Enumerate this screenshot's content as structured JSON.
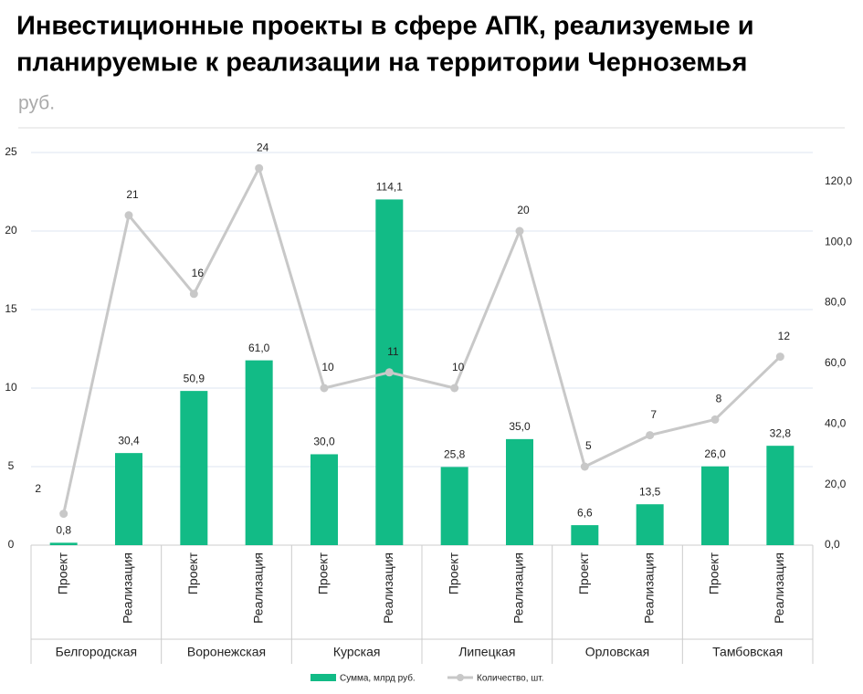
{
  "chart_data": {
    "type": "bar-line",
    "title": [
      "Инвестиционные проекты в сфере АПК, реализуемые и",
      "планируемые к реализации на территории  Черноземья"
    ],
    "subtitle": "руб.",
    "categories": [
      "Проект",
      "Реализация",
      "Проект",
      "Реализация",
      "Проект",
      "Реализация",
      "Проект",
      "Реализация",
      "Проект",
      "Реализация",
      "Проект",
      "Реализация"
    ],
    "groups": [
      "Белгородская",
      "Воронежская",
      "Курская",
      "Липецкая",
      "Орловская",
      "Тамбовская"
    ],
    "series": [
      {
        "name": "Сумма, млрд руб.",
        "type": "bar",
        "axis": "y2",
        "color": "#12bb86",
        "values": [
          0.8,
          30.4,
          50.9,
          61.0,
          30.0,
          114.1,
          25.8,
          35.0,
          6.6,
          13.5,
          26.0,
          32.8
        ],
        "value_labels": [
          "0,8",
          "30,4",
          "50,9",
          "61,0",
          "30,0",
          "114,1",
          "25,8",
          "35,0",
          "6,6",
          "13,5",
          "26,0",
          "32,8"
        ]
      },
      {
        "name": "Количество, шт.",
        "type": "line",
        "axis": "y",
        "color": "#c8c8c8",
        "values": [
          2,
          21,
          16,
          24,
          10,
          11,
          10,
          20,
          5,
          7,
          8,
          12
        ]
      }
    ],
    "ylim": [
      0,
      25
    ],
    "yticks": [
      0,
      5,
      10,
      15,
      20,
      25
    ],
    "y2lim": [
      0,
      129.6
    ],
    "y2ticks": [
      {
        "value": 0,
        "label": "0,0"
      },
      {
        "value": 20,
        "label": "20,0"
      },
      {
        "value": 40,
        "label": "40,0"
      },
      {
        "value": 60,
        "label": "60,0"
      },
      {
        "value": 80,
        "label": "80,0"
      },
      {
        "value": 100,
        "label": "100,0"
      },
      {
        "value": 120,
        "label": "120,0"
      }
    ],
    "grid": true,
    "legend": "bottom"
  }
}
